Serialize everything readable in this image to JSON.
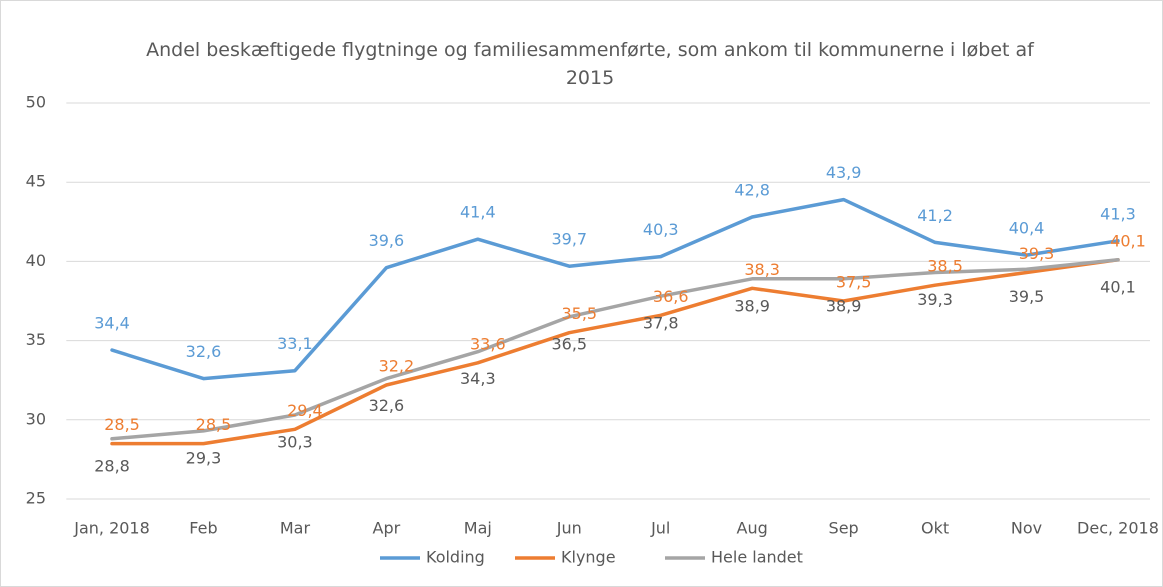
{
  "chart_data": {
    "type": "line",
    "title": "Andel beskæftigede flygtninge og familiesammenførte, som ankom til kommunerne i løbet af 2015",
    "categories": [
      "Jan, 2018",
      "Feb",
      "Mar",
      "Apr",
      "Maj",
      "Jun",
      "Jul",
      "Aug",
      "Sep",
      "Okt",
      "Nov",
      "Dec, 2018"
    ],
    "series": [
      {
        "name": "Kolding",
        "color": "#5b9bd5",
        "values": [
          34.4,
          32.6,
          33.1,
          39.6,
          41.4,
          39.7,
          40.3,
          42.8,
          43.9,
          41.2,
          40.4,
          41.3
        ],
        "value_labels": [
          "34,4",
          "32,6",
          "33,1",
          "39,6",
          "41,4",
          "39,7",
          "40,3",
          "42,8",
          "43,9",
          "41,2",
          "40,4",
          "41,3"
        ]
      },
      {
        "name": "Klynge",
        "color": "#ed7d31",
        "values": [
          28.5,
          28.5,
          29.4,
          32.2,
          33.6,
          35.5,
          36.6,
          38.3,
          37.5,
          38.5,
          39.3,
          40.1
        ],
        "value_labels": [
          "28,5",
          "28,5",
          "29,4",
          "32,2",
          "33,6",
          "35,5",
          "36,6",
          "38,3",
          "37,5",
          "38,5",
          "39,3",
          "40,1"
        ]
      },
      {
        "name": "Hele landet",
        "color": "#a5a5a5",
        "values": [
          28.8,
          29.3,
          30.3,
          32.6,
          34.3,
          36.5,
          37.8,
          38.9,
          38.9,
          39.3,
          39.5,
          40.1
        ],
        "value_labels": [
          "28,8",
          "29,3",
          "30,3",
          "32,6",
          "34,3",
          "36,5",
          "37,8",
          "38,9",
          "38,9",
          "39,3",
          "39,5",
          "40,1"
        ]
      }
    ],
    "ylim": [
      25,
      50
    ],
    "yticks": [
      25,
      30,
      35,
      40,
      45,
      50
    ],
    "grid": true,
    "legend": "bottom"
  }
}
